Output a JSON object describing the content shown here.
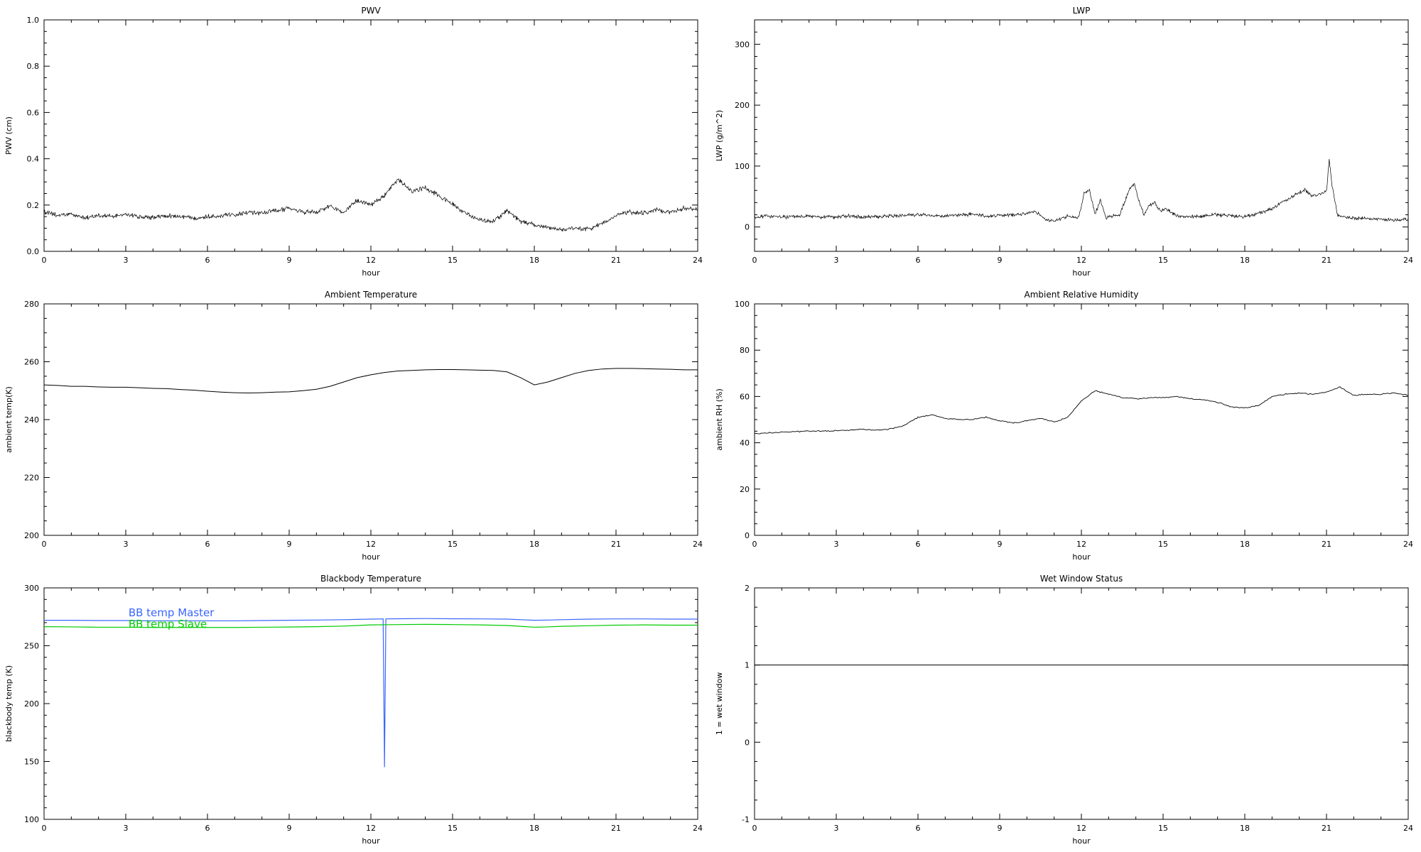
{
  "page": {
    "background": "#ffffff",
    "foreground": "#000000"
  },
  "chart_data": [
    {
      "id": "pwv",
      "type": "line",
      "title": "PWV",
      "xlabel": "hour",
      "ylabel": "PWV (cm)",
      "xlim": [
        0,
        24
      ],
      "ylim": [
        0.0,
        1.0
      ],
      "xticks": [
        0,
        3,
        6,
        9,
        12,
        15,
        18,
        21,
        24
      ],
      "xtick_labels": [
        "0",
        "3",
        "6",
        "9",
        "12",
        "15",
        "18",
        "21",
        "24"
      ],
      "xminor": 1,
      "yticks": [
        0.0,
        0.2,
        0.4,
        0.6,
        0.8,
        1.0
      ],
      "ytick_labels": [
        "0.0",
        "0.2",
        "0.4",
        "0.6",
        "0.8",
        "1.0"
      ],
      "yminor": 0.05,
      "grid": false,
      "legend_position": "none",
      "series": [
        {
          "name": "PWV",
          "color": "#000000",
          "width": 0.7,
          "noise": 0.012,
          "step": 0.02,
          "x": [
            0,
            0.5,
            1,
            1.5,
            2,
            2.5,
            3,
            3.5,
            4,
            4.5,
            5,
            5.5,
            6,
            6.5,
            7,
            7.5,
            8,
            8.5,
            9,
            9.5,
            10,
            10.5,
            11,
            11.5,
            12,
            12.5,
            13,
            13.5,
            14,
            14.5,
            15,
            15.5,
            16,
            16.5,
            17,
            17.5,
            18,
            18.5,
            19,
            19.5,
            20,
            20.5,
            21,
            21.5,
            22,
            22.5,
            23,
            23.5,
            24
          ],
          "y": [
            0.17,
            0.155,
            0.16,
            0.145,
            0.155,
            0.15,
            0.16,
            0.15,
            0.145,
            0.155,
            0.15,
            0.145,
            0.15,
            0.155,
            0.16,
            0.17,
            0.165,
            0.175,
            0.185,
            0.17,
            0.17,
            0.195,
            0.17,
            0.22,
            0.2,
            0.24,
            0.31,
            0.26,
            0.275,
            0.24,
            0.205,
            0.16,
            0.135,
            0.13,
            0.175,
            0.13,
            0.115,
            0.1,
            0.095,
            0.1,
            0.095,
            0.12,
            0.155,
            0.17,
            0.165,
            0.18,
            0.17,
            0.185,
            0.18
          ]
        }
      ]
    },
    {
      "id": "lwp",
      "type": "line",
      "title": "LWP",
      "xlabel": "hour",
      "ylabel": "LWP (g/m^2)",
      "xlim": [
        0,
        24
      ],
      "ylim": [
        -40,
        340
      ],
      "xticks": [
        0,
        3,
        6,
        9,
        12,
        15,
        18,
        21,
        24
      ],
      "xtick_labels": [
        "0",
        "3",
        "6",
        "9",
        "12",
        "15",
        "18",
        "21",
        "24"
      ],
      "xminor": 1,
      "yticks": [
        0,
        100,
        200,
        300
      ],
      "ytick_labels": [
        "0",
        "100",
        "200",
        "300"
      ],
      "yminor": 20,
      "grid": false,
      "legend_position": "none",
      "series": [
        {
          "name": "LWP",
          "color": "#000000",
          "width": 0.7,
          "noise": 3.5,
          "step": 0.02,
          "x": [
            0,
            0.5,
            1,
            1.5,
            2,
            2.5,
            3,
            3.5,
            4,
            4.5,
            5,
            5.5,
            6,
            6.5,
            7,
            7.5,
            8,
            8.5,
            9,
            9.5,
            10,
            10.3,
            10.7,
            11,
            11.5,
            11.9,
            12.1,
            12.3,
            12.5,
            12.7,
            12.9,
            13.1,
            13.4,
            13.8,
            13.95,
            14.1,
            14.3,
            14.5,
            14.7,
            14.9,
            15.1,
            15.5,
            16,
            16.5,
            17,
            17.5,
            18,
            18.5,
            19,
            19.3,
            19.6,
            19.9,
            20.2,
            20.5,
            20.8,
            21.0,
            21.1,
            21.2,
            21.4,
            21.6,
            22,
            22.5,
            23,
            23.5,
            24
          ],
          "y": [
            15,
            18,
            16,
            17,
            18,
            16,
            17,
            18,
            16,
            17,
            18,
            19,
            20,
            19,
            18,
            20,
            21,
            18,
            19,
            20,
            22,
            25,
            12,
            10,
            18,
            15,
            55,
            60,
            20,
            45,
            15,
            18,
            20,
            65,
            70,
            45,
            20,
            35,
            40,
            25,
            30,
            18,
            17,
            18,
            20,
            18,
            17,
            22,
            30,
            40,
            45,
            55,
            60,
            50,
            55,
            60,
            110,
            70,
            20,
            16,
            15,
            14,
            13,
            12,
            12
          ]
        }
      ]
    },
    {
      "id": "ambient-temperature",
      "type": "line",
      "title": "Ambient Temperature",
      "xlabel": "hour",
      "ylabel": "ambient temp(K)",
      "xlim": [
        0,
        24
      ],
      "ylim": [
        200,
        280
      ],
      "xticks": [
        0,
        3,
        6,
        9,
        12,
        15,
        18,
        21,
        24
      ],
      "xtick_labels": [
        "0",
        "3",
        "6",
        "9",
        "12",
        "15",
        "18",
        "21",
        "24"
      ],
      "xminor": 1,
      "yticks": [
        200,
        220,
        240,
        260,
        280
      ],
      "ytick_labels": [
        "200",
        "220",
        "240",
        "260",
        "280"
      ],
      "yminor": 5,
      "grid": false,
      "legend_position": "none",
      "series": [
        {
          "name": "ambient temperature",
          "color": "#000000",
          "width": 1,
          "noise": 0,
          "x": [
            0,
            0.5,
            1,
            1.5,
            2,
            2.5,
            3,
            3.5,
            4,
            4.5,
            5,
            5.5,
            6,
            6.5,
            7,
            7.5,
            8,
            8.5,
            9,
            9.5,
            10,
            10.5,
            11,
            11.5,
            12,
            12.5,
            13,
            13.5,
            14,
            14.5,
            15,
            15.5,
            16,
            16.5,
            17,
            17.5,
            18,
            18.5,
            19,
            19.5,
            20,
            20.5,
            21,
            21.5,
            22,
            22.5,
            23,
            23.5,
            24
          ],
          "y": [
            252,
            251.8,
            251.5,
            251.5,
            251.3,
            251.2,
            251.2,
            251,
            250.8,
            250.7,
            250.4,
            250.2,
            249.8,
            249.5,
            249.3,
            249.2,
            249.3,
            249.5,
            249.6,
            250,
            250.5,
            251.5,
            253,
            254.5,
            255.5,
            256.3,
            256.8,
            257,
            257.2,
            257.3,
            257.3,
            257.2,
            257.1,
            257,
            256.5,
            254.5,
            252,
            253,
            254.5,
            256,
            257,
            257.5,
            257.7,
            257.7,
            257.6,
            257.5,
            257.4,
            257.2,
            257.2
          ]
        }
      ]
    },
    {
      "id": "ambient-relative-humidity",
      "type": "line",
      "title": "Ambient Relative Humidity",
      "xlabel": "hour",
      "ylabel": "ambient RH (%)",
      "xlim": [
        0,
        24
      ],
      "ylim": [
        0,
        100
      ],
      "xticks": [
        0,
        3,
        6,
        9,
        12,
        15,
        18,
        21,
        24
      ],
      "xtick_labels": [
        "0",
        "3",
        "6",
        "9",
        "12",
        "15",
        "18",
        "21",
        "24"
      ],
      "xminor": 1,
      "yticks": [
        0,
        20,
        40,
        60,
        80,
        100
      ],
      "ytick_labels": [
        "0",
        "20",
        "40",
        "60",
        "80",
        "100"
      ],
      "yminor": 5,
      "grid": false,
      "legend_position": "none",
      "series": [
        {
          "name": "ambient RH",
          "color": "#000000",
          "width": 0.9,
          "noise": 0.3,
          "step": 0.05,
          "x": [
            0,
            0.5,
            1,
            1.5,
            2,
            2.5,
            3,
            3.5,
            4,
            4.5,
            5,
            5.5,
            6,
            6.5,
            7,
            7.5,
            8,
            8.5,
            9,
            9.5,
            10,
            10.5,
            11,
            11.5,
            12,
            12.5,
            13,
            13.5,
            14,
            14.5,
            15,
            15.5,
            16,
            16.5,
            17,
            17.5,
            18,
            18.5,
            19,
            19.5,
            20,
            20.5,
            21,
            21.5,
            22,
            22.5,
            23,
            23.5,
            24
          ],
          "y": [
            44,
            44.3,
            44.6,
            44.8,
            45,
            45,
            45.2,
            45.5,
            45.8,
            45.5,
            46,
            47.5,
            51,
            52,
            50.5,
            50,
            50,
            51,
            49.5,
            48.5,
            49.5,
            50.5,
            49,
            51,
            58,
            62.5,
            61,
            59.5,
            59,
            59.5,
            59.5,
            60,
            59,
            58.5,
            57.5,
            55.5,
            55,
            56,
            60,
            61,
            61.5,
            61,
            62,
            64,
            60.5,
            61,
            61,
            61.5,
            60.5
          ]
        }
      ]
    },
    {
      "id": "blackbody-temperature",
      "type": "line",
      "title": "Blackbody Temperature",
      "xlabel": "hour",
      "ylabel": "blackbody temp (K)",
      "xlim": [
        0,
        24
      ],
      "ylim": [
        100,
        300
      ],
      "xticks": [
        0,
        3,
        6,
        9,
        12,
        15,
        18,
        21,
        24
      ],
      "xtick_labels": [
        "0",
        "3",
        "6",
        "9",
        "12",
        "15",
        "18",
        "21",
        "24"
      ],
      "xminor": 1,
      "yticks": [
        100,
        150,
        200,
        250,
        300
      ],
      "ytick_labels": [
        "100",
        "150",
        "200",
        "250",
        "300"
      ],
      "yminor": 10,
      "grid": false,
      "legend_position": "inside-top-left",
      "legend": [
        {
          "label": "BB temp Master",
          "color": "#3a66ff",
          "x": 3.1,
          "y": 275.5
        },
        {
          "label": "BB temp Slave",
          "color": "#00cc00",
          "x": 3.1,
          "y": 265.5
        }
      ],
      "series": [
        {
          "name": "BB temp Master",
          "color": "#3a66ff",
          "width": 1.2,
          "noise": 0,
          "x": [
            0,
            1,
            2,
            3,
            4,
            5,
            6,
            7,
            8,
            9,
            10,
            11,
            12,
            12.45,
            12.5,
            12.55,
            13,
            14,
            15,
            16,
            17,
            17.5,
            18,
            18.5,
            19,
            20,
            21,
            22,
            23,
            24
          ],
          "y": [
            272,
            272,
            271.8,
            271.8,
            271.5,
            271.5,
            271.5,
            271.5,
            271.8,
            272,
            272.2,
            272.5,
            273,
            273.2,
            145,
            273.2,
            273.3,
            273.5,
            273.3,
            273.2,
            273,
            272.5,
            272,
            272.2,
            272.5,
            273,
            273.2,
            273.2,
            273,
            273
          ]
        },
        {
          "name": "BB temp Slave",
          "color": "#00cc00",
          "width": 1.2,
          "noise": 0,
          "x": [
            0,
            1,
            2,
            3,
            4,
            5,
            6,
            7,
            8,
            9,
            10,
            11,
            12,
            13,
            14,
            15,
            16,
            17,
            17.5,
            18,
            18.5,
            19,
            20,
            21,
            22,
            23,
            24
          ],
          "y": [
            266.5,
            266.3,
            266,
            266,
            265.8,
            265.8,
            265.8,
            265.8,
            266,
            266.2,
            266.5,
            267,
            268,
            268.3,
            268.5,
            268.3,
            268,
            267.5,
            266.8,
            266,
            266.3,
            266.8,
            267.3,
            267.8,
            268,
            267.8,
            267.8
          ]
        }
      ]
    },
    {
      "id": "wet-window-status",
      "type": "line",
      "title": "Wet Window Status",
      "xlabel": "hour",
      "ylabel": "1 = wet window",
      "xlim": [
        0,
        24
      ],
      "ylim": [
        -1,
        2
      ],
      "xticks": [
        0,
        3,
        6,
        9,
        12,
        15,
        18,
        21,
        24
      ],
      "xtick_labels": [
        "0",
        "3",
        "6",
        "9",
        "12",
        "15",
        "18",
        "21",
        "24"
      ],
      "xminor": 1,
      "yticks": [
        -1,
        0,
        1,
        2
      ],
      "ytick_labels": [
        "-1",
        "0",
        "1",
        "2"
      ],
      "yminor": 0.25,
      "grid": false,
      "legend_position": "none",
      "series": [
        {
          "name": "wet window status",
          "color": "#000000",
          "width": 1,
          "noise": 0,
          "x": [
            0,
            24
          ],
          "y": [
            1,
            1
          ]
        }
      ]
    }
  ]
}
